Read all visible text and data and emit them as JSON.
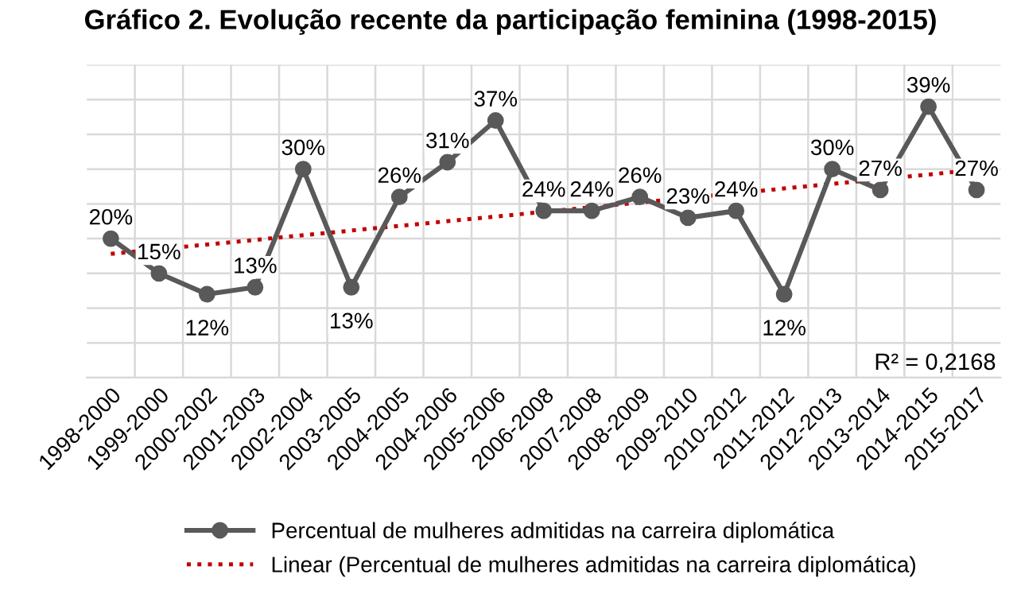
{
  "chart_data": {
    "type": "line",
    "title": "Gráfico 2. Evolução recente da participação feminina (1998-2015)",
    "categories": [
      "1998-2000",
      "1999-2000",
      "2000-2002",
      "2001-2003",
      "2002-2004",
      "2003-2005",
      "2004-2005",
      "2004-2006",
      "2005-2006",
      "2006-2008",
      "2007-2008",
      "2008-2009",
      "2009-2010",
      "2010-2012",
      "2011-2012",
      "2012-2013",
      "2013-2014",
      "2014-2015",
      "2015-2017"
    ],
    "series": [
      {
        "name": "Percentual de mulheres admitidas na carreira diplomática",
        "color": "#595959",
        "marker": "circle",
        "line_style": "solid",
        "value_labels": [
          "20%",
          "15%",
          "12%",
          "13%",
          "30%",
          "13%",
          "26%",
          "31%",
          "37%",
          "24%",
          "24%",
          "26%",
          "23%",
          "24%",
          "12%",
          "30%",
          "27%",
          "39%",
          "27%"
        ],
        "values": [
          20,
          15,
          12,
          13,
          30,
          13,
          26,
          31,
          37,
          24,
          24,
          26,
          23,
          24,
          12,
          30,
          27,
          39,
          27
        ]
      },
      {
        "name": "Linear (Percentual de mulheres admitidas na carreira diplomática)",
        "color": "#c00000",
        "line_style": "dotted",
        "x": [
          "1998-2000",
          "2015-2017"
        ],
        "values": [
          17.8,
          29.9
        ]
      }
    ],
    "ylim": [
      0,
      45
    ],
    "yticks": [
      {
        "value": 0,
        "label": null
      },
      {
        "value": 5,
        "label": null
      },
      {
        "value": 10,
        "label": null
      },
      {
        "value": 15,
        "label": null
      },
      {
        "value": 20,
        "label": null
      },
      {
        "value": 25,
        "label": null
      },
      {
        "value": 30,
        "label": null
      },
      {
        "value": 35,
        "label": null
      },
      {
        "value": 40,
        "label": null
      },
      {
        "value": 45,
        "label": null
      }
    ],
    "tick_labels": "x",
    "grid": true,
    "legend": "bottom",
    "annotations": [
      "R² = 0,2168"
    ]
  }
}
